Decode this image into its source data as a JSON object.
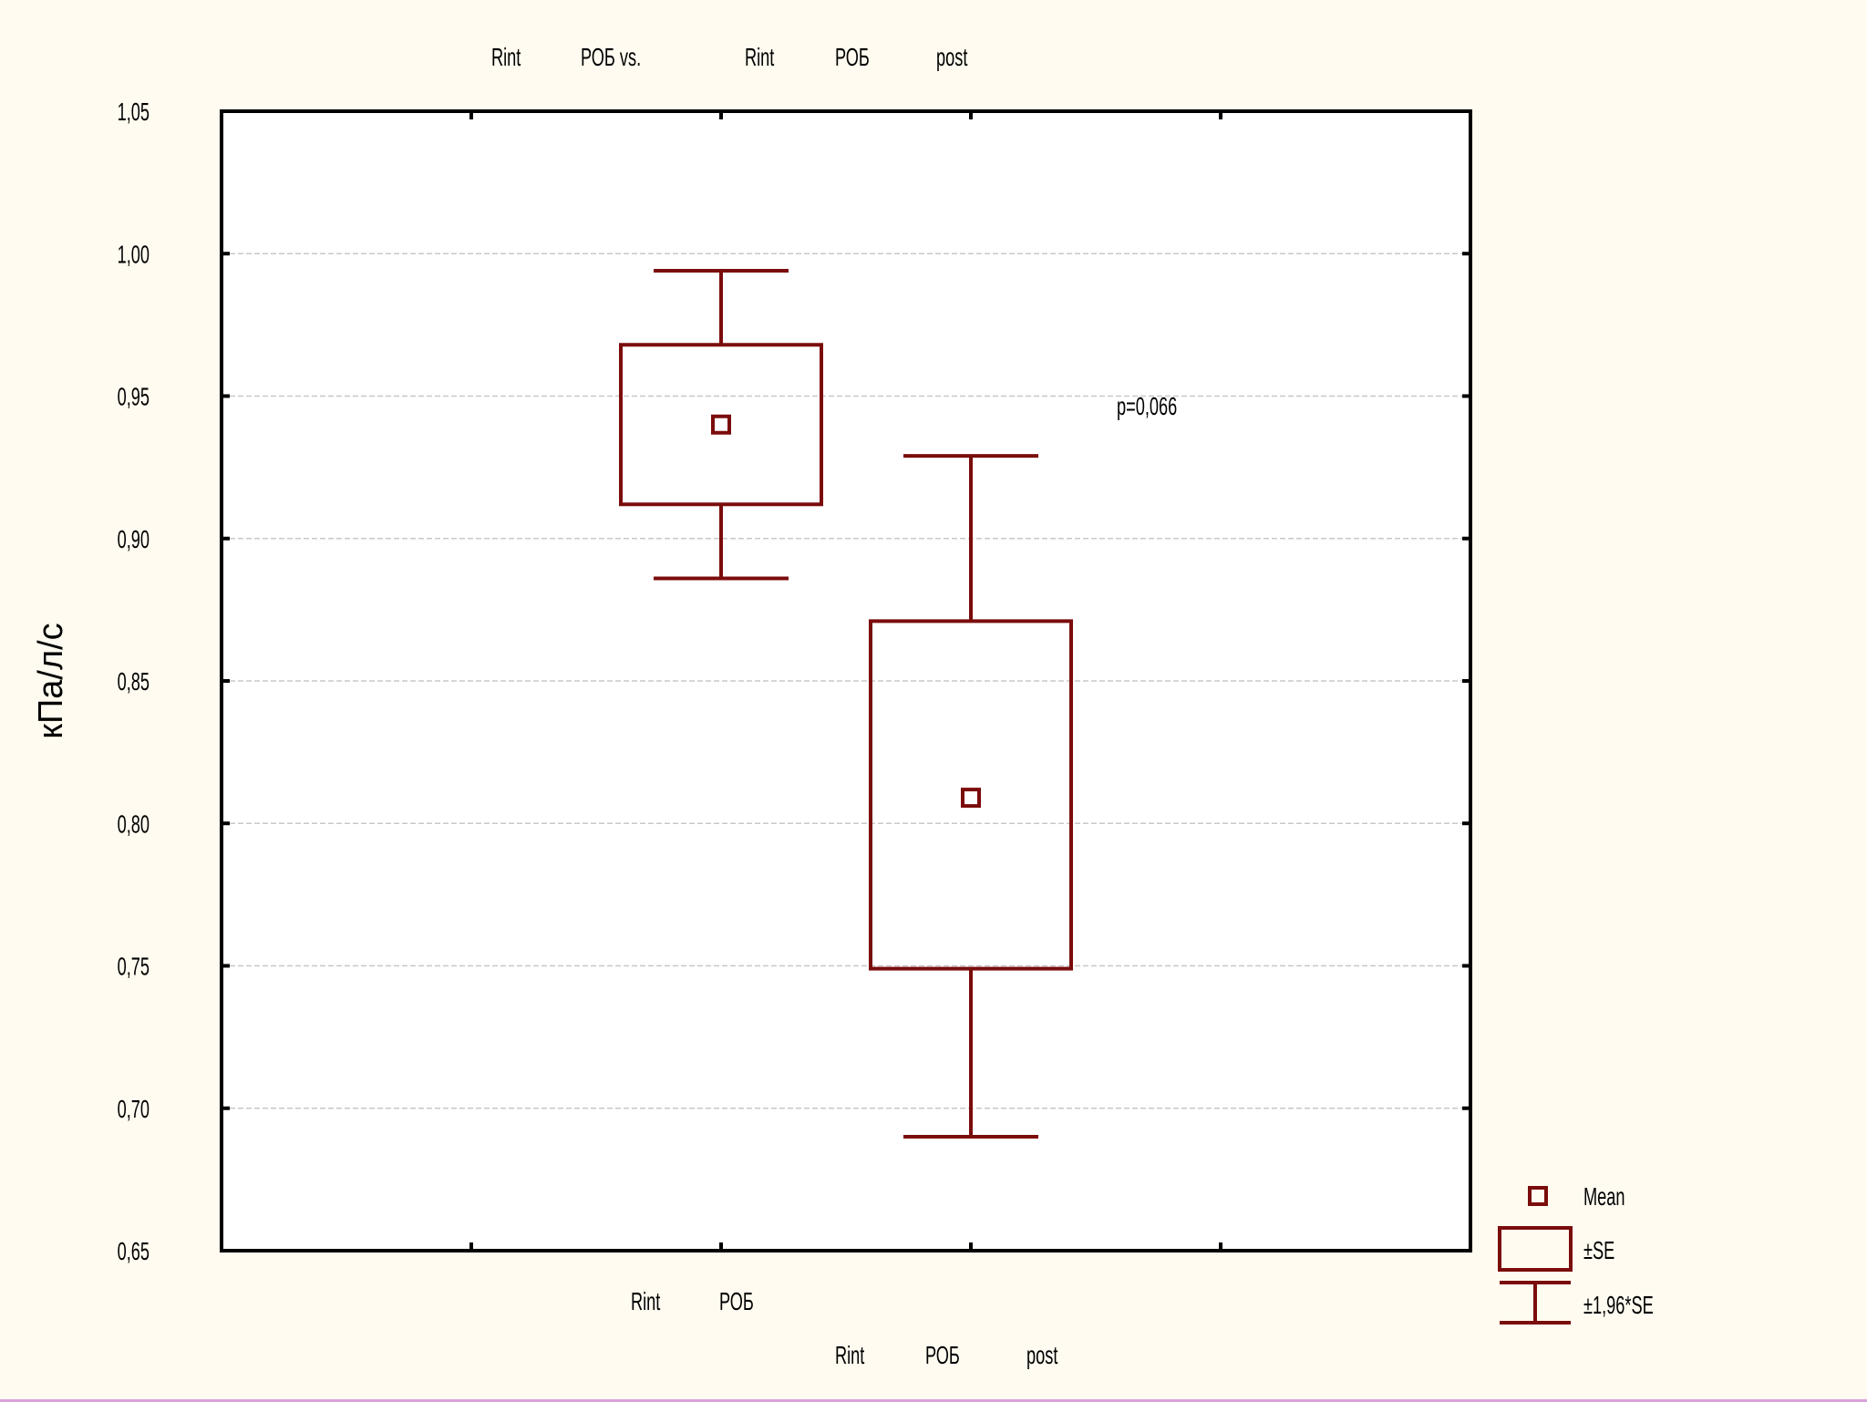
{
  "colors": {
    "background": "#fffbf0",
    "plot_area": "#ffffff",
    "series": "#7b0c0c",
    "axis": "#000000",
    "grid": "#c8c8c8"
  },
  "top_labels": {
    "group1": [
      "Rint",
      "РОБ vs."
    ],
    "group2": [
      "Rint",
      "РОБ",
      "post"
    ]
  },
  "bottom_labels": {
    "group1": [
      "Rint",
      "РОБ"
    ],
    "group2": [
      "Rint",
      "РОБ",
      "post"
    ]
  },
  "annotation": "p=0,066",
  "legend": {
    "mean": "Mean",
    "se": "±SE",
    "ci": "±1,96*SE"
  },
  "chart_data": {
    "type": "box",
    "ylabel": "кПа/л/с",
    "ylim": [
      0.65,
      1.05
    ],
    "yticks": [
      "0,65",
      "0,70",
      "0,75",
      "0,80",
      "0,85",
      "0,90",
      "0,95",
      "1,00",
      "1,05"
    ],
    "grid": true,
    "legend_position": "bottom-right",
    "categories": [
      "Rint РОБ",
      "Rint РОБ post"
    ],
    "series": [
      {
        "name": "Rint РОБ",
        "mean": 0.94,
        "se_low": 0.912,
        "se_high": 0.968,
        "ci_low": 0.886,
        "ci_high": 0.994
      },
      {
        "name": "Rint РОБ post",
        "mean": 0.809,
        "se_low": 0.749,
        "se_high": 0.871,
        "ci_low": 0.69,
        "ci_high": 0.929
      }
    ]
  }
}
